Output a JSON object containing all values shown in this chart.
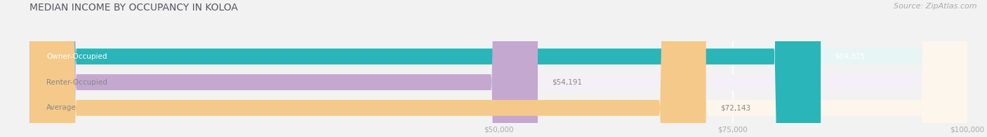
{
  "title": "MEDIAN INCOME BY OCCUPANCY IN KOLOA",
  "source": "Source: ZipAtlas.com",
  "categories": [
    "Owner-Occupied",
    "Renter-Occupied",
    "Average"
  ],
  "values": [
    84375,
    54191,
    72143
  ],
  "bar_colors": [
    "#2ab5b8",
    "#c4a8d0",
    "#f5c98a"
  ],
  "bar_bg_colors": [
    "#e8f5f5",
    "#f5f0f8",
    "#fdf6ec"
  ],
  "value_labels": [
    "$84,375",
    "$54,191",
    "$72,143"
  ],
  "label_colors": [
    "white",
    "#888888",
    "#888888"
  ],
  "xlim": [
    0,
    100000
  ],
  "xticks": [
    50000,
    75000,
    100000
  ],
  "xtick_labels": [
    "$50,000",
    "$75,000",
    "$100,000"
  ],
  "title_fontsize": 10,
  "source_fontsize": 8,
  "bar_label_fontsize": 7.5,
  "val_label_fontsize": 7.5,
  "bar_height": 0.62,
  "background_color": "#f2f2f2"
}
